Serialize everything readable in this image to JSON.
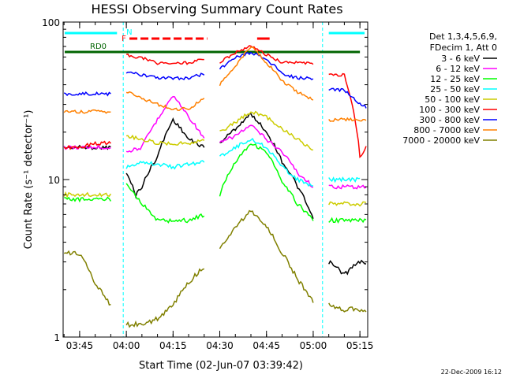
{
  "chart_data": {
    "type": "line",
    "title": "HESSI Observing Summary Count Rates",
    "xlabel": "Start Time (02-Jun-07 03:39:42)",
    "ylabel": "Count Rate (s⁻¹ detector⁻¹)",
    "y_scale": "log",
    "ylim": [
      1,
      100
    ],
    "xlim": [
      "03:39:42",
      "05:17:30"
    ],
    "x_ticks": [
      "03:45",
      "04:00",
      "04:15",
      "04:30",
      "04:45",
      "05:00",
      "05:15"
    ],
    "y_ticks": [
      "1",
      "10",
      "100"
    ],
    "legend_placement": "right",
    "legend_header": [
      "Det 1,3,4,5,6,9,",
      "FDecim 1, Att 0"
    ],
    "footer_date": "22-Dec-2009 16:12",
    "flags": {
      "N_label": "N",
      "RD0_label": "RD0",
      "F_label": "F",
      "N_color": "#00ffff",
      "RD0_color": "#006400",
      "F_color": "#ff0000",
      "night_markers": [
        "03:59",
        "05:03"
      ]
    },
    "series": [
      {
        "name": "3 - 6 keV",
        "color": "#000000",
        "x": [
          "03:40",
          "03:45",
          "03:50",
          "03:55",
          "03:57",
          "04:00",
          "04:03",
          "04:05",
          "04:10",
          "04:15",
          "04:20",
          "04:25",
          "04:28",
          "04:30",
          "04:35",
          "04:40",
          "04:45",
          "04:50",
          "04:55",
          "05:00",
          "05:03",
          "05:05",
          "05:10",
          "05:15",
          "05:17"
        ],
        "y": [
          16,
          16,
          16,
          16,
          null,
          11,
          8,
          9,
          14,
          24,
          18,
          16,
          null,
          17,
          21,
          26,
          20,
          13,
          9,
          5.5,
          null,
          3,
          2.5,
          3,
          3
        ]
      },
      {
        "name": "6 - 12 keV",
        "color": "#ff00ff",
        "x": [
          "03:40",
          "03:45",
          "03:50",
          "03:55",
          "03:57",
          "04:00",
          "04:05",
          "04:10",
          "04:15",
          "04:20",
          "04:25",
          "04:28",
          "04:30",
          "04:35",
          "04:40",
          "04:45",
          "04:50",
          "04:55",
          "05:00",
          "05:03",
          "05:05",
          "05:10",
          "05:15",
          "05:17"
        ],
        "y": [
          16,
          16,
          16,
          16,
          null,
          15,
          16,
          24,
          34,
          25,
          18,
          null,
          17,
          19,
          22,
          18,
          15,
          11,
          9,
          null,
          9,
          9,
          9,
          9
        ]
      },
      {
        "name": "12 - 25 keV",
        "color": "#00ff00",
        "x": [
          "03:40",
          "03:45",
          "03:50",
          "03:55",
          "03:57",
          "04:00",
          "04:05",
          "04:10",
          "04:15",
          "04:20",
          "04:25",
          "04:28",
          "04:30",
          "04:35",
          "04:40",
          "04:45",
          "04:50",
          "04:55",
          "05:00",
          "05:03",
          "05:05",
          "05:10",
          "05:15",
          "05:17"
        ],
        "y": [
          7.5,
          7.5,
          7.5,
          7.5,
          null,
          9.5,
          7,
          5.5,
          5.5,
          5.5,
          6,
          null,
          8,
          13,
          17,
          15,
          9.5,
          7,
          5.5,
          null,
          5.5,
          5.5,
          5.5,
          5.5
        ]
      },
      {
        "name": "25 - 50 keV",
        "color": "#00ffff",
        "x": [
          "04:00",
          "04:05",
          "04:10",
          "04:15",
          "04:20",
          "04:25",
          "04:28",
          "04:30",
          "04:35",
          "04:40",
          "04:45",
          "04:50",
          "04:55",
          "05:00",
          "05:03",
          "05:05",
          "05:10",
          "05:15"
        ],
        "y": [
          12,
          13,
          12.5,
          12,
          12.5,
          13,
          null,
          14,
          16,
          18,
          16,
          12,
          10,
          9,
          null,
          10,
          10,
          10
        ]
      },
      {
        "name": "50 - 100 keV",
        "color": "#cccc00",
        "x": [
          "03:40",
          "03:45",
          "03:50",
          "03:55",
          "03:57",
          "04:00",
          "04:05",
          "04:10",
          "04:15",
          "04:20",
          "04:25",
          "04:28",
          "04:30",
          "04:35",
          "04:40",
          "04:45",
          "04:50",
          "04:55",
          "05:00",
          "05:03",
          "05:05",
          "05:10",
          "05:15",
          "05:17"
        ],
        "y": [
          8,
          8,
          8,
          8,
          null,
          19,
          18,
          17,
          17,
          17,
          18,
          null,
          20,
          23,
          27,
          25,
          21,
          18,
          15,
          null,
          7,
          7,
          7,
          7
        ]
      },
      {
        "name": "100 - 300 keV",
        "color": "#ff0000",
        "x": [
          "03:40",
          "03:45",
          "03:50",
          "03:55",
          "03:57",
          "04:00",
          "04:05",
          "04:10",
          "04:15",
          "04:20",
          "04:25",
          "04:28",
          "04:30",
          "04:35",
          "04:40",
          "04:45",
          "04:50",
          "04:55",
          "05:00",
          "05:03",
          "05:05",
          "05:10",
          "05:15",
          "05:17"
        ],
        "y": [
          16,
          16,
          17,
          17,
          null,
          62,
          59,
          55,
          55,
          55,
          59,
          null,
          55,
          64,
          70,
          62,
          55,
          55,
          55,
          null,
          46,
          46,
          14,
          16
        ]
      },
      {
        "name": "300 - 800 keV",
        "color": "#0000ff",
        "x": [
          "03:40",
          "03:45",
          "03:50",
          "03:55",
          "03:57",
          "04:00",
          "04:05",
          "04:10",
          "04:15",
          "04:20",
          "04:25",
          "04:28",
          "04:30",
          "04:35",
          "04:40",
          "04:45",
          "04:50",
          "04:55",
          "05:00",
          "05:03",
          "05:05",
          "05:10",
          "05:15",
          "05:17"
        ],
        "y": [
          35,
          35,
          35,
          35,
          null,
          48,
          46,
          44,
          44,
          44,
          47,
          null,
          50,
          60,
          64,
          58,
          47,
          44,
          44,
          null,
          37,
          37,
          30,
          29
        ]
      },
      {
        "name": "800 - 7000 keV",
        "color": "#ff8000",
        "x": [
          "03:40",
          "03:45",
          "03:50",
          "03:55",
          "03:57",
          "04:00",
          "04:05",
          "04:10",
          "04:15",
          "04:20",
          "04:25",
          "04:28",
          "04:30",
          "04:35",
          "04:40",
          "04:45",
          "04:50",
          "04:55",
          "05:00",
          "05:03",
          "05:05",
          "05:10",
          "05:15",
          "05:17"
        ],
        "y": [
          27,
          27,
          27,
          27,
          null,
          36,
          33,
          30,
          28,
          28,
          33,
          null,
          40,
          52,
          70,
          55,
          42,
          36,
          32,
          null,
          24,
          24,
          24,
          24
        ]
      },
      {
        "name": "7000 - 20000 keV",
        "color": "#808000",
        "x": [
          "03:40",
          "03:45",
          "03:50",
          "03:55",
          "03:57",
          "04:00",
          "04:05",
          "04:10",
          "04:15",
          "04:20",
          "04:25",
          "04:28",
          "04:30",
          "04:35",
          "04:40",
          "04:45",
          "04:50",
          "04:55",
          "05:00",
          "05:03",
          "05:05",
          "05:10",
          "05:15",
          "05:17"
        ],
        "y": [
          3.4,
          3.4,
          2.2,
          1.6,
          null,
          1.2,
          1.2,
          1.3,
          1.6,
          2.2,
          2.8,
          null,
          3.6,
          5,
          6.3,
          5,
          3.4,
          2.3,
          1.7,
          null,
          1.6,
          1.5,
          1.5,
          1.5
        ]
      }
    ]
  }
}
